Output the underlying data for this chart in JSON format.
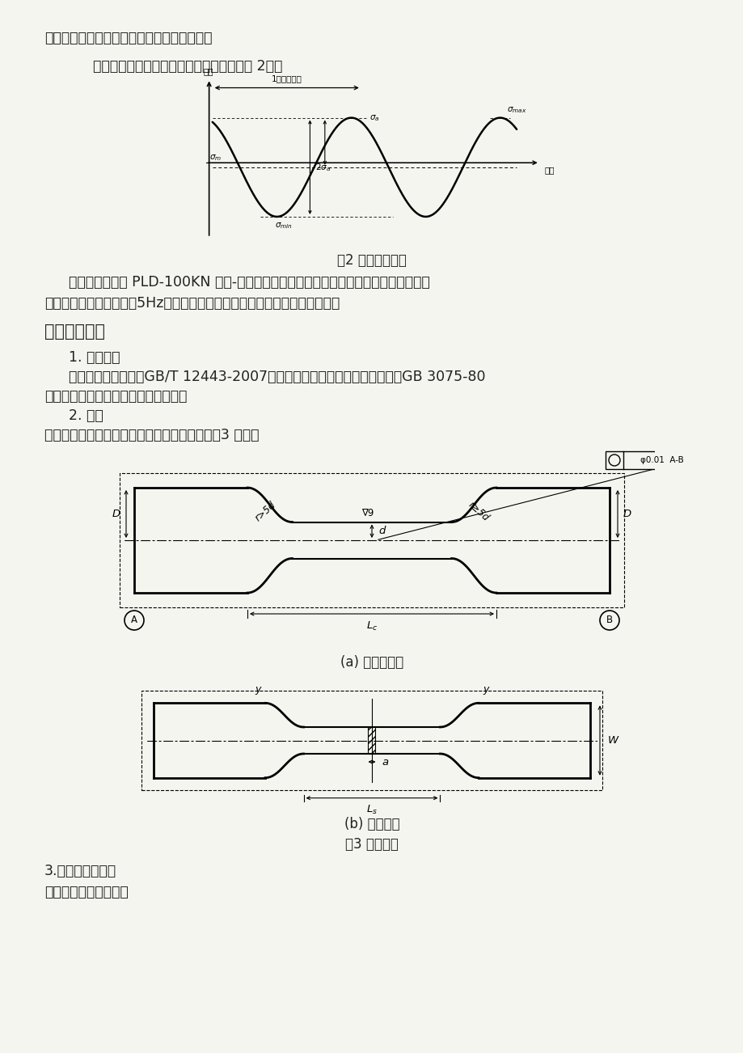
{
  "bg_color": "#f5f5f0",
  "text_color": "#222222",
  "line1": "为疲劳强度。它有别于上面定义的疲劳极限。",
  "line2": "疲劳试验常采用循环加载，其加载波形如图 2所示",
  "fig2_caption": "图2 疲劳应力循环",
  "para1": "扭转疲劳试验在 PLD-100KN 型拉-拉电液伺服疲劳试验机上进行，扭转疲劳试验时，采",
  "para2": "用应力控制，加载频率为5Hz，加载波形为三角波，试验环境为实验室大气。",
  "heading": "四、实验方法",
  "sub1": "1. 试验标准",
  "sub1_text1": "疲劳试验标准可参照GB/T 12443-2007《金属材料扭应力疲劳试验方法》和GB 3075-80",
  "sub1_text2": "《金属轴向疲劳试验方法》进行试验。",
  "sub2": "2. 试样",
  "sub2_text": "疲劳试样的主要有圆柱形、漏斗形、板状，如图3 所示。",
  "fig3a_caption": "(a) 圆柱形试样",
  "fig3b_caption": "(b) 板状试样",
  "fig3_caption": "图3 试样形状",
  "sub3": "3.试验参数的确定",
  "sub3_text": "轴向应力由下式求得："
}
